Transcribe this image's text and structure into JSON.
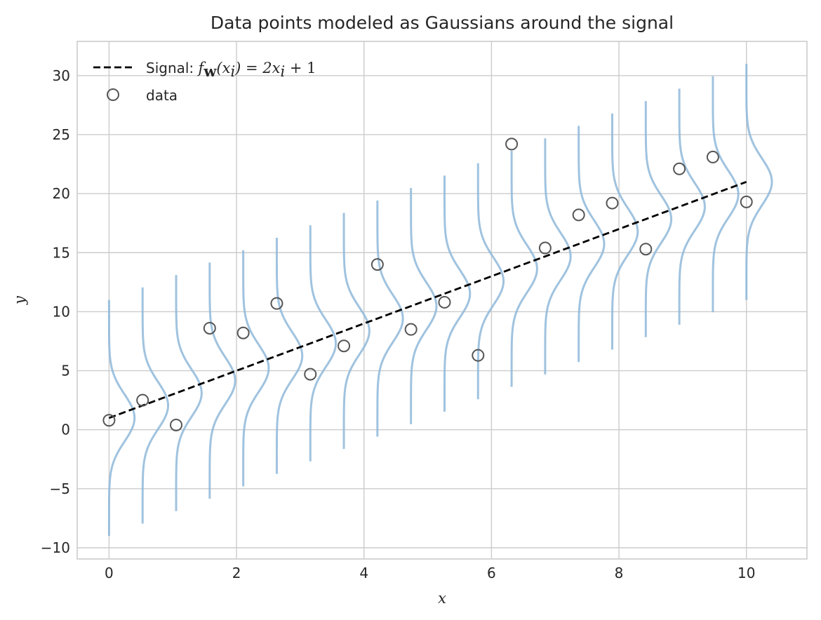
{
  "chart_data": {
    "type": "line",
    "title": "Data points modeled as Gaussians around the signal",
    "xlabel": "x",
    "ylabel": "y",
    "xlim": [
      -0.5,
      10.95
    ],
    "ylim": [
      -10.95,
      32.9
    ],
    "xticks": [
      0,
      2,
      4,
      6,
      8,
      10
    ],
    "yticks": [
      -10,
      -5,
      0,
      5,
      10,
      15,
      20,
      25,
      30
    ],
    "xtick_labels": [
      "0",
      "2",
      "4",
      "6",
      "8",
      "10"
    ],
    "ytick_labels": [
      "−10",
      "−5",
      "0",
      "5",
      "10",
      "15",
      "20",
      "25",
      "30"
    ],
    "grid": true,
    "legend_position": "top-left",
    "colors": {
      "signal": "#000000",
      "data_edge": "#555555",
      "gaussian": "#8fb9d9",
      "grid": "#cccccc",
      "frame": "#cccccc"
    },
    "signal": {
      "name_prefix": "Signal: ",
      "name_math_parts": [
        "f",
        "w",
        "(x",
        "i",
        ") = 2x",
        "i",
        " + 1"
      ],
      "slope": 2,
      "intercept": 1,
      "x_range": [
        0,
        10
      ]
    },
    "data": {
      "name": "data",
      "x": [
        0,
        0.5263,
        1.0526,
        1.5789,
        2.1053,
        2.6316,
        3.1579,
        3.6842,
        4.2105,
        4.7368,
        5.2632,
        5.7895,
        6.3158,
        6.8421,
        7.3684,
        7.8947,
        8.4211,
        8.9474,
        9.4737,
        10
      ],
      "y": [
        0.8,
        2.5,
        0.4,
        8.6,
        8.2,
        10.7,
        4.7,
        7.1,
        14.0,
        8.5,
        10.8,
        6.3,
        24.2,
        15.4,
        18.2,
        19.2,
        15.3,
        22.1,
        23.1,
        19.3
      ]
    },
    "gaussians": {
      "sigma": 2,
      "half_width_y": 10,
      "peak_width_x": 0.4
    }
  }
}
